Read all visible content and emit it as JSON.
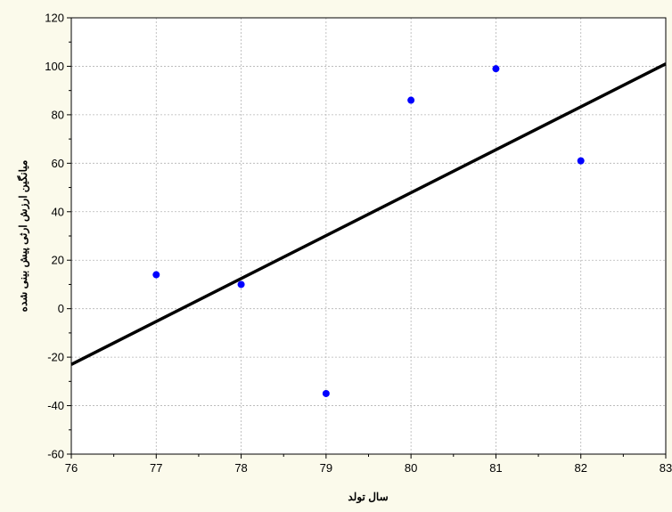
{
  "chart_data": {
    "type": "scatter",
    "title": "",
    "xlabel": "سال تولد",
    "ylabel": "میانگین ارزش ارثی پیش بینی شده",
    "xlim": [
      76,
      83
    ],
    "ylim": [
      -60,
      120
    ],
    "x_ticks": [
      76,
      77,
      78,
      79,
      80,
      81,
      82,
      83
    ],
    "y_ticks": [
      -60,
      -40,
      -20,
      0,
      20,
      40,
      60,
      80,
      100,
      120
    ],
    "grid": true,
    "series": [
      {
        "points": [
          {
            "x": 77,
            "y": 14
          },
          {
            "x": 78,
            "y": 10
          },
          {
            "x": 79,
            "y": -35
          },
          {
            "x": 80,
            "y": 86
          },
          {
            "x": 81,
            "y": 99
          },
          {
            "x": 82,
            "y": 61
          }
        ],
        "color": "#0000ff"
      }
    ],
    "fit_line": {
      "points": [
        {
          "x": 76,
          "y": -23
        },
        {
          "x": 83,
          "y": 101
        }
      ],
      "color": "#000000"
    }
  }
}
